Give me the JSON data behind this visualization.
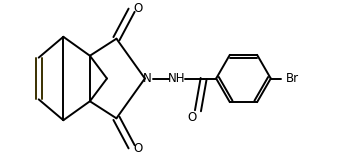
{
  "background_color": "#ffffff",
  "line_color": "#000000",
  "text_color": "#000000",
  "linewidth": 1.4,
  "figsize": [
    3.58,
    1.57
  ],
  "dpi": 100,
  "xlim": [
    -2.2,
    5.8
  ],
  "ylim": [
    -2.0,
    2.0
  ]
}
